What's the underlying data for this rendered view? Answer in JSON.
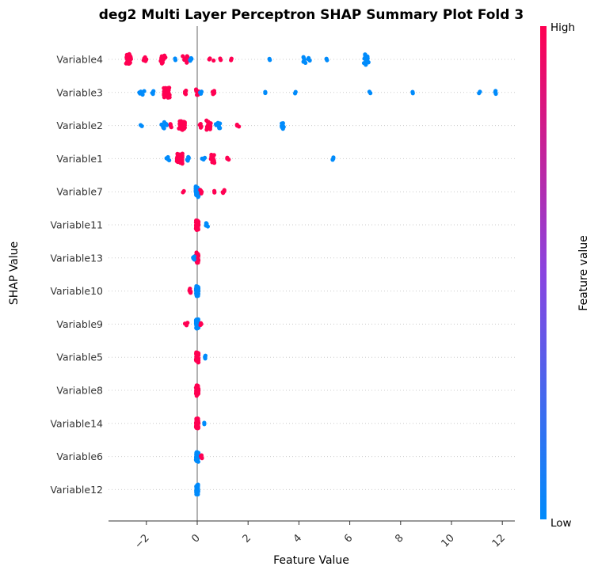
{
  "chart_data": {
    "type": "scatter",
    "subtype": "shap-beeswarm",
    "title": "deg2 Multi Layer Perceptron SHAP Summary Plot Fold 3",
    "xlabel": "Feature Value",
    "ylabel": "SHAP Value",
    "xlim": [
      -3.5,
      12.5
    ],
    "xticks": [
      -2,
      0,
      2,
      4,
      6,
      8,
      10,
      12
    ],
    "xtick_labels": [
      "−2",
      "0",
      "2",
      "4",
      "6",
      "8",
      "10",
      "12"
    ],
    "zero_line": 0,
    "grid": "dotted horizontal row lines",
    "colorbar": {
      "label": "Feature value",
      "high_label": "High",
      "low_label": "Low",
      "high_color": "#ff0052",
      "low_color": "#008bfb",
      "placement": "right"
    },
    "features": [
      {
        "name": "Variable4",
        "clusters": [
          {
            "x": -2.7,
            "n": 40,
            "spread": 0.1,
            "color": "high"
          },
          {
            "x": -2.05,
            "n": 5,
            "spread": 0.06,
            "color": "high"
          },
          {
            "x": -1.35,
            "n": 10,
            "spread": 0.1,
            "color": "high"
          },
          {
            "x": -0.85,
            "n": 2,
            "spread": 0.04,
            "color": "low"
          },
          {
            "x": -0.45,
            "n": 10,
            "spread": 0.12,
            "color": "high"
          },
          {
            "x": -0.25,
            "n": 4,
            "spread": 0.08,
            "color": "low"
          },
          {
            "x": 0.55,
            "n": 3,
            "spread": 0.1,
            "color": "high"
          },
          {
            "x": 0.9,
            "n": 2,
            "spread": 0.04,
            "color": "high"
          },
          {
            "x": 1.35,
            "n": 2,
            "spread": 0.03,
            "color": "high"
          },
          {
            "x": 2.85,
            "n": 2,
            "spread": 0.03,
            "color": "low"
          },
          {
            "x": 4.3,
            "n": 8,
            "spread": 0.15,
            "color": "low"
          },
          {
            "x": 5.1,
            "n": 2,
            "spread": 0.03,
            "color": "low"
          },
          {
            "x": 6.65,
            "n": 18,
            "spread": 0.1,
            "color": "low"
          }
        ]
      },
      {
        "name": "Variable3",
        "clusters": [
          {
            "x": -2.2,
            "n": 5,
            "spread": 0.12,
            "color": "low"
          },
          {
            "x": -1.75,
            "n": 4,
            "spread": 0.05,
            "color": "low"
          },
          {
            "x": -1.2,
            "n": 45,
            "spread": 0.12,
            "color": "high"
          },
          {
            "x": -0.5,
            "n": 5,
            "spread": 0.06,
            "color": "high"
          },
          {
            "x": 0.0,
            "n": 8,
            "spread": 0.05,
            "color": "high"
          },
          {
            "x": 0.15,
            "n": 3,
            "spread": 0.04,
            "color": "low"
          },
          {
            "x": 0.65,
            "n": 5,
            "spread": 0.06,
            "color": "high"
          },
          {
            "x": 2.7,
            "n": 2,
            "spread": 0.03,
            "color": "low"
          },
          {
            "x": 3.85,
            "n": 2,
            "spread": 0.03,
            "color": "low"
          },
          {
            "x": 6.8,
            "n": 2,
            "spread": 0.03,
            "color": "low"
          },
          {
            "x": 8.5,
            "n": 2,
            "spread": 0.03,
            "color": "low"
          },
          {
            "x": 11.1,
            "n": 2,
            "spread": 0.03,
            "color": "low"
          },
          {
            "x": 11.75,
            "n": 4,
            "spread": 0.03,
            "color": "low"
          }
        ]
      },
      {
        "name": "Variable2",
        "clusters": [
          {
            "x": -2.2,
            "n": 2,
            "spread": 0.03,
            "color": "low"
          },
          {
            "x": -1.3,
            "n": 8,
            "spread": 0.12,
            "color": "low"
          },
          {
            "x": -1.05,
            "n": 4,
            "spread": 0.06,
            "color": "high"
          },
          {
            "x": -0.6,
            "n": 40,
            "spread": 0.12,
            "color": "high"
          },
          {
            "x": 0.15,
            "n": 5,
            "spread": 0.06,
            "color": "high"
          },
          {
            "x": 0.45,
            "n": 15,
            "spread": 0.1,
            "color": "high"
          },
          {
            "x": 0.8,
            "n": 8,
            "spread": 0.12,
            "color": "low"
          },
          {
            "x": 1.6,
            "n": 3,
            "spread": 0.05,
            "color": "high"
          },
          {
            "x": 3.35,
            "n": 8,
            "spread": 0.06,
            "color": "low"
          }
        ]
      },
      {
        "name": "Variable1",
        "clusters": [
          {
            "x": -1.15,
            "n": 4,
            "spread": 0.06,
            "color": "low"
          },
          {
            "x": -0.7,
            "n": 50,
            "spread": 0.12,
            "color": "high"
          },
          {
            "x": -0.4,
            "n": 5,
            "spread": 0.08,
            "color": "low"
          },
          {
            "x": 0.25,
            "n": 3,
            "spread": 0.06,
            "color": "low"
          },
          {
            "x": 0.65,
            "n": 12,
            "spread": 0.12,
            "color": "high"
          },
          {
            "x": 1.2,
            "n": 3,
            "spread": 0.05,
            "color": "high"
          },
          {
            "x": 5.35,
            "n": 3,
            "spread": 0.03,
            "color": "low"
          }
        ]
      },
      {
        "name": "Variable7",
        "clusters": [
          {
            "x": 0.0,
            "n": 55,
            "spread": 0.06,
            "color": "low"
          },
          {
            "x": 0.15,
            "n": 5,
            "spread": 0.06,
            "color": "high"
          },
          {
            "x": -0.55,
            "n": 2,
            "spread": 0.03,
            "color": "high"
          },
          {
            "x": 0.7,
            "n": 2,
            "spread": 0.03,
            "color": "high"
          },
          {
            "x": 1.05,
            "n": 4,
            "spread": 0.05,
            "color": "high"
          }
        ]
      },
      {
        "name": "Variable11",
        "clusters": [
          {
            "x": 0.0,
            "n": 55,
            "spread": 0.05,
            "color": "high"
          },
          {
            "x": 0.35,
            "n": 5,
            "spread": 0.08,
            "color": "low"
          }
        ]
      },
      {
        "name": "Variable13",
        "clusters": [
          {
            "x": 0.0,
            "n": 55,
            "spread": 0.05,
            "color": "high"
          },
          {
            "x": -0.15,
            "n": 4,
            "spread": 0.04,
            "color": "low"
          }
        ]
      },
      {
        "name": "Variable10",
        "clusters": [
          {
            "x": 0.0,
            "n": 50,
            "spread": 0.05,
            "color": "low"
          },
          {
            "x": -0.3,
            "n": 6,
            "spread": 0.06,
            "color": "high"
          }
        ]
      },
      {
        "name": "Variable9",
        "clusters": [
          {
            "x": 0.0,
            "n": 50,
            "spread": 0.05,
            "color": "low"
          },
          {
            "x": -0.4,
            "n": 4,
            "spread": 0.1,
            "color": "high"
          },
          {
            "x": 0.15,
            "n": 3,
            "spread": 0.04,
            "color": "high"
          }
        ]
      },
      {
        "name": "Variable5",
        "clusters": [
          {
            "x": 0.0,
            "n": 55,
            "spread": 0.05,
            "color": "high"
          },
          {
            "x": 0.3,
            "n": 4,
            "spread": 0.06,
            "color": "low"
          }
        ]
      },
      {
        "name": "Variable8",
        "clusters": [
          {
            "x": 0.0,
            "n": 60,
            "spread": 0.05,
            "color": "high"
          }
        ]
      },
      {
        "name": "Variable14",
        "clusters": [
          {
            "x": 0.0,
            "n": 55,
            "spread": 0.05,
            "color": "high"
          },
          {
            "x": 0.25,
            "n": 2,
            "spread": 0.03,
            "color": "low"
          }
        ]
      },
      {
        "name": "Variable6",
        "clusters": [
          {
            "x": 0.0,
            "n": 50,
            "spread": 0.05,
            "color": "low"
          },
          {
            "x": 0.15,
            "n": 4,
            "spread": 0.04,
            "color": "high"
          }
        ]
      },
      {
        "name": "Variable12",
        "clusters": [
          {
            "x": 0.0,
            "n": 50,
            "spread": 0.04,
            "color": "low"
          }
        ]
      }
    ]
  }
}
